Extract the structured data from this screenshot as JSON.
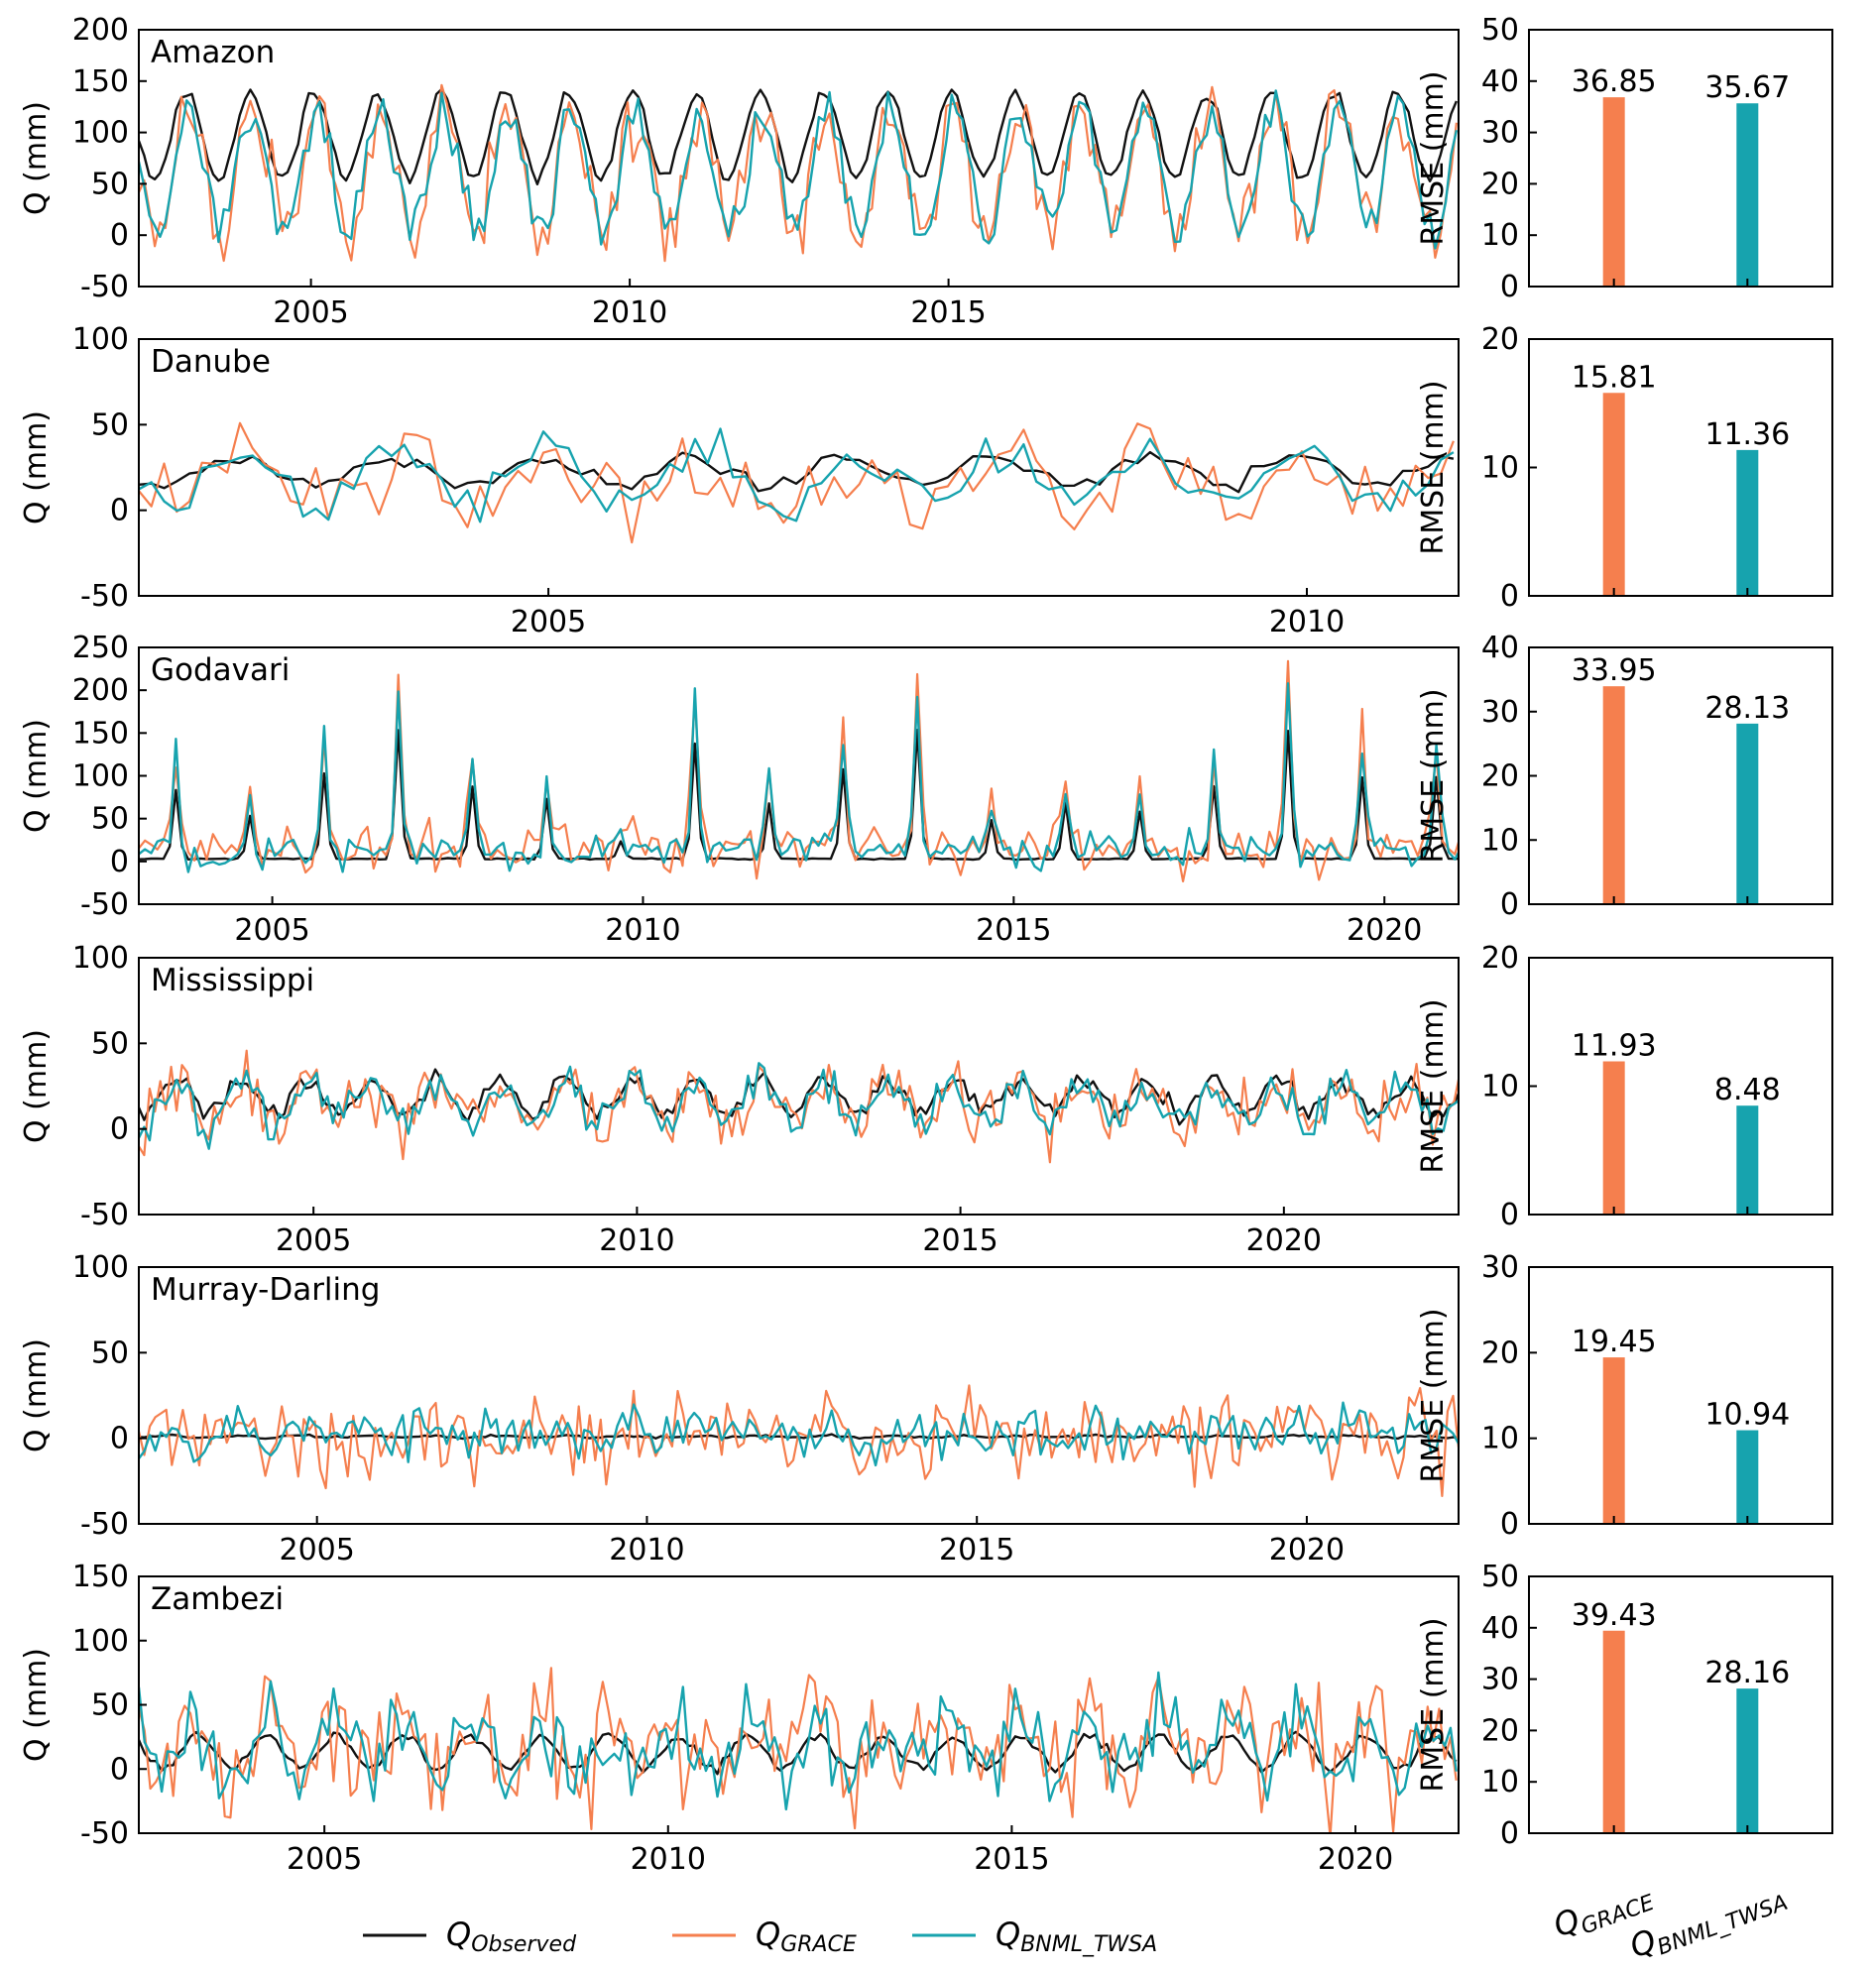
{
  "colors": {
    "observed": "#111111",
    "grace": "#f57f4e",
    "bnml": "#17a3ae",
    "axis": "#000000"
  },
  "legend": {
    "observed": {
      "main": "Q",
      "sub": "Observed"
    },
    "grace": {
      "main": "Q",
      "sub": "GRACE"
    },
    "bnml": {
      "main": "Q",
      "sub": "BNML_TWSA"
    }
  },
  "bar_category_labels": [
    {
      "main": "Q",
      "sub": "GRACE"
    },
    {
      "main": "Q",
      "sub": "BNML_TWSA"
    }
  ],
  "chart_data": [
    {
      "type": "line",
      "name": "Amazon",
      "title": "Amazon",
      "ylabel": "Q (mm)",
      "xlim": [
        2002.3,
        2023.0
      ],
      "ylim": [
        -50,
        200
      ],
      "yticks": [
        -50,
        0,
        50,
        100,
        150,
        200
      ],
      "xticks": [
        2005,
        2010,
        2015
      ],
      "series": [
        {
          "name": "Q_Observed",
          "mean": 97,
          "amp": 42,
          "noise": 4,
          "phase": 0.2,
          "seed": 11
        },
        {
          "name": "Q_GRACE",
          "mean": 62,
          "amp": 60,
          "noise": 26,
          "phase": 0.15,
          "seed": 12
        },
        {
          "name": "Q_BNML_TWSA",
          "mean": 62,
          "amp": 58,
          "noise": 16,
          "phase": 0.15,
          "seed": 13
        }
      ],
      "rmse": {
        "ylabel": "RMSE (mm)",
        "ylim": [
          0,
          50
        ],
        "yticks": [
          0,
          10,
          20,
          30,
          40,
          50
        ],
        "categories": [
          "Q_GRACE",
          "Q_BNML_TWSA"
        ],
        "values": [
          36.85,
          35.67
        ],
        "labels": [
          "36.85",
          "35.67"
        ]
      }
    },
    {
      "type": "line",
      "name": "Danube",
      "title": "Danube",
      "ylabel": "Q (mm)",
      "xlim": [
        2002.3,
        2011.0
      ],
      "ylim": [
        -50,
        100
      ],
      "yticks": [
        -50,
        0,
        50,
        100
      ],
      "xticks": [
        2005,
        2010
      ],
      "series": [
        {
          "name": "Q_Observed",
          "mean": 23,
          "amp": 8,
          "noise": 3,
          "phase": 0.3,
          "seed": 21
        },
        {
          "name": "Q_GRACE",
          "mean": 18,
          "amp": 14,
          "noise": 17,
          "phase": 0.25,
          "seed": 22
        },
        {
          "name": "Q_BNML_TWSA",
          "mean": 20,
          "amp": 13,
          "noise": 10,
          "phase": 0.25,
          "seed": 23
        }
      ],
      "rmse": {
        "ylabel": "RMSE (mm)",
        "ylim": [
          0,
          20
        ],
        "yticks": [
          0,
          10,
          20
        ],
        "categories": [
          "Q_GRACE",
          "Q_BNML_TWSA"
        ],
        "values": [
          15.81,
          11.36
        ],
        "labels": [
          "15.81",
          "11.36"
        ]
      }
    },
    {
      "type": "line",
      "name": "Godavari",
      "title": "Godavari",
      "ylabel": "Q (mm)",
      "xlim": [
        2003.2,
        2021.0
      ],
      "ylim": [
        -50,
        250
      ],
      "yticks": [
        -50,
        0,
        50,
        100,
        150,
        200,
        250
      ],
      "xticks": [
        2005,
        2010,
        2015,
        2020
      ],
      "peaks": [
        80,
        50,
        100,
        150,
        85,
        70,
        20,
        135,
        65,
        105,
        150,
        45,
        65,
        55,
        85,
        150,
        95
      ],
      "series": [
        {
          "name": "Q_Observed",
          "mean": 3,
          "amp": 1,
          "noise": 2,
          "phase": 0.6,
          "seed": 31,
          "scale": 1.0
        },
        {
          "name": "Q_GRACE",
          "mean": 15,
          "amp": 1,
          "noise": 22,
          "phase": 0.6,
          "seed": 32,
          "scale": 1.35
        },
        {
          "name": "Q_BNML_TWSA",
          "mean": 12,
          "amp": 1,
          "noise": 16,
          "phase": 0.6,
          "seed": 33,
          "scale": 1.3
        }
      ],
      "rmse": {
        "ylabel": "RMSE (mm)",
        "ylim": [
          0,
          40
        ],
        "yticks": [
          0,
          10,
          20,
          30,
          40
        ],
        "categories": [
          "Q_GRACE",
          "Q_BNML_TWSA"
        ],
        "values": [
          33.95,
          28.13
        ],
        "labels": [
          "33.95",
          "28.13"
        ]
      }
    },
    {
      "type": "line",
      "name": "Mississippi",
      "title": "Mississippi",
      "ylabel": "Q (mm)",
      "xlim": [
        2002.3,
        2022.7
      ],
      "ylim": [
        -50,
        100
      ],
      "yticks": [
        -50,
        0,
        50,
        100
      ],
      "xticks": [
        2005,
        2010,
        2015,
        2020
      ],
      "series": [
        {
          "name": "Q_Observed",
          "mean": 19,
          "amp": 10,
          "noise": 4,
          "phase": 0.35,
          "seed": 41
        },
        {
          "name": "Q_GRACE",
          "mean": 14,
          "amp": 12,
          "noise": 14,
          "phase": 0.35,
          "seed": 42
        },
        {
          "name": "Q_BNML_TWSA",
          "mean": 15,
          "amp": 11,
          "noise": 9,
          "phase": 0.35,
          "seed": 43
        }
      ],
      "rmse": {
        "ylabel": "RMSE (mm)",
        "ylim": [
          0,
          20
        ],
        "yticks": [
          0,
          10,
          20
        ],
        "categories": [
          "Q_GRACE",
          "Q_BNML_TWSA"
        ],
        "values": [
          11.93,
          8.48
        ],
        "labels": [
          "11.93",
          "8.48"
        ]
      }
    },
    {
      "type": "line",
      "name": "Murray-Darling",
      "title": "Murray-Darling",
      "ylabel": "Q (mm)",
      "xlim": [
        2002.3,
        2022.3
      ],
      "ylim": [
        -50,
        100
      ],
      "yticks": [
        -50,
        0,
        50,
        100
      ],
      "xticks": [
        2005,
        2010,
        2015,
        2020
      ],
      "series": [
        {
          "name": "Q_Observed",
          "mean": 1,
          "amp": 0.5,
          "noise": 0.5,
          "phase": 0.5,
          "seed": 51
        },
        {
          "name": "Q_GRACE",
          "mean": 2,
          "amp": 4,
          "noise": 18,
          "phase": 0.5,
          "seed": 52
        },
        {
          "name": "Q_BNML_TWSA",
          "mean": 3,
          "amp": 4,
          "noise": 10,
          "phase": 0.5,
          "seed": 53
        }
      ],
      "rmse": {
        "ylabel": "RMSE (mm)",
        "ylim": [
          0,
          30
        ],
        "yticks": [
          0,
          10,
          20,
          30
        ],
        "categories": [
          "Q_GRACE",
          "Q_BNML_TWSA"
        ],
        "values": [
          19.45,
          10.94
        ],
        "labels": [
          "19.45",
          "10.94"
        ]
      }
    },
    {
      "type": "line",
      "name": "Zambezi",
      "title": "Zambezi",
      "ylabel": "Q (mm)",
      "xlim": [
        2002.3,
        2021.5
      ],
      "ylim": [
        -50,
        150
      ],
      "yticks": [
        -50,
        0,
        50,
        100,
        150
      ],
      "xticks": [
        2005,
        2010,
        2015,
        2020
      ],
      "series": [
        {
          "name": "Q_Observed",
          "mean": 13,
          "amp": 13,
          "noise": 3,
          "phase": 0.1,
          "seed": 61
        },
        {
          "name": "Q_GRACE",
          "mean": 20,
          "amp": 20,
          "noise": 33,
          "phase": 0.1,
          "seed": 62
        },
        {
          "name": "Q_BNML_TWSA",
          "mean": 20,
          "amp": 20,
          "noise": 22,
          "phase": 0.1,
          "seed": 63
        }
      ],
      "rmse": {
        "ylabel": "RMSE (mm)",
        "ylim": [
          0,
          50
        ],
        "yticks": [
          0,
          10,
          20,
          30,
          40,
          50
        ],
        "categories": [
          "Q_GRACE",
          "Q_BNML_TWSA"
        ],
        "values": [
          39.43,
          28.16
        ],
        "labels": [
          "39.43",
          "28.16"
        ]
      }
    }
  ]
}
